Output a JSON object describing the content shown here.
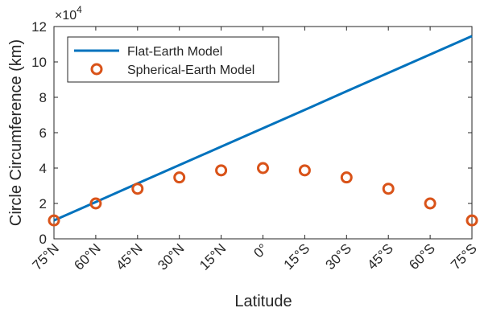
{
  "chart_data": {
    "type": "line",
    "title": "",
    "xlabel": "Latitude",
    "ylabel": "Circle Circumference (km)",
    "y_exponent_label": "×10",
    "y_exponent_power": "4",
    "categories": [
      "75°N",
      "60°N",
      "45°N",
      "30°N",
      "15°N",
      "0°",
      "15°S",
      "30°S",
      "45°S",
      "60°S",
      "75°S"
    ],
    "ylim": [
      0,
      120000
    ],
    "yticks": [
      0,
      20000,
      40000,
      60000,
      80000,
      100000,
      120000
    ],
    "ytick_labels": [
      "0",
      "2",
      "4",
      "6",
      "8",
      "10",
      "12"
    ],
    "grid": false,
    "legend_position": "top-left",
    "series": [
      {
        "name": "Flat-Earth Model",
        "kind": "line",
        "color": "#0072BD",
        "values": [
          10400,
          20800,
          31300,
          41700,
          52100,
          62500,
          72900,
          83400,
          93800,
          104200,
          114600
        ]
      },
      {
        "name": "Spherical-Earth Model",
        "kind": "scatter",
        "marker": "circle-open",
        "color": "#D95319",
        "values": [
          10400,
          20000,
          28300,
          34700,
          38700,
          40000,
          38700,
          34700,
          28300,
          20000,
          10400
        ]
      }
    ]
  }
}
